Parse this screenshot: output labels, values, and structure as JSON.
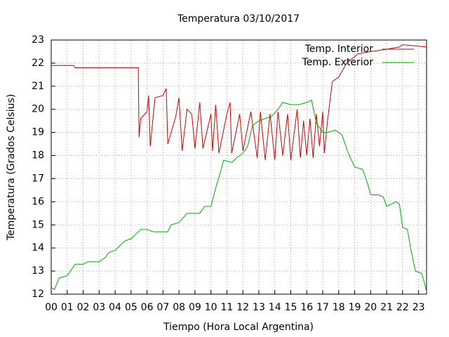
{
  "chart_data": {
    "type": "line",
    "title": "Temperatura 03/10/2017",
    "x_label": "Tiempo (Hora Local Argentina)",
    "y_label": "Temperatura (Grados Celsius)",
    "xlim": [
      0,
      23.5
    ],
    "ylim": [
      12,
      23
    ],
    "xticks": [
      {
        "value": 0,
        "label": "00"
      },
      {
        "value": 1,
        "label": "01"
      },
      {
        "value": 2,
        "label": "02"
      },
      {
        "value": 3,
        "label": "03"
      },
      {
        "value": 4,
        "label": "04"
      },
      {
        "value": 5,
        "label": "05"
      },
      {
        "value": 6,
        "label": "06"
      },
      {
        "value": 7,
        "label": "07"
      },
      {
        "value": 8,
        "label": "08"
      },
      {
        "value": 9,
        "label": "09"
      },
      10,
      11,
      12,
      13,
      14,
      15,
      16,
      17,
      18,
      19,
      20,
      21,
      22,
      23
    ],
    "yticks": [
      12,
      13,
      14,
      15,
      16,
      17,
      18,
      19,
      20,
      21,
      22,
      23
    ],
    "grid": true,
    "legend": "top-right",
    "series": [
      {
        "name": "Temp. Interior",
        "color": "#cc0000",
        "x": [
          0,
          1.4,
          1.5,
          5.45,
          5.5,
          5.6,
          6.0,
          6.1,
          6.2,
          6.5,
          7.0,
          7.2,
          7.3,
          7.8,
          8.0,
          8.2,
          8.5,
          8.8,
          9.0,
          9.3,
          9.5,
          10.0,
          10.1,
          10.3,
          10.5,
          11.0,
          11.2,
          11.3,
          11.8,
          12.0,
          12.5,
          12.9,
          13.1,
          13.4,
          13.7,
          14.0,
          14.2,
          14.5,
          14.8,
          15.0,
          15.4,
          15.6,
          15.8,
          16.0,
          16.2,
          16.4,
          16.6,
          16.8,
          17.0,
          17.1,
          17.3,
          17.6,
          18.0,
          18.5,
          19.2,
          20.0,
          21.0,
          21.8,
          22.0,
          23.5
        ],
        "values": [
          21.9,
          21.9,
          21.8,
          21.8,
          18.8,
          19.6,
          19.9,
          20.6,
          18.4,
          20.5,
          20.6,
          20.9,
          18.5,
          19.7,
          20.5,
          18.2,
          20.0,
          19.8,
          18.3,
          20.3,
          18.3,
          19.8,
          18.2,
          20.2,
          18.1,
          19.8,
          20.3,
          18.1,
          19.8,
          18.2,
          19.9,
          17.9,
          19.9,
          17.8,
          19.8,
          17.8,
          19.9,
          18.0,
          19.8,
          17.8,
          20.0,
          17.9,
          19.5,
          18.0,
          19.6,
          17.9,
          19.8,
          18.4,
          19.9,
          18.1,
          19.5,
          21.2,
          21.4,
          22.0,
          22.4,
          22.5,
          22.6,
          22.7,
          22.8,
          22.7
        ]
      },
      {
        "name": "Temp. Exterior",
        "color": "#00aa00",
        "x": [
          0,
          0.2,
          0.5,
          1.0,
          1.2,
          1.5,
          2.0,
          2.3,
          3.0,
          3.4,
          3.6,
          4.0,
          4.3,
          4.6,
          5.0,
          5.3,
          5.6,
          6.0,
          6.4,
          7.0,
          7.3,
          7.5,
          8.0,
          8.5,
          9.0,
          9.3,
          9.6,
          10.0,
          10.3,
          10.6,
          10.8,
          11.3,
          11.6,
          12.0,
          12.3,
          12.6,
          13.0,
          13.4,
          13.8,
          14.2,
          14.5,
          15.0,
          15.5,
          16.0,
          16.3,
          16.6,
          17.0,
          17.3,
          17.8,
          18.2,
          18.6,
          19.0,
          19.5,
          19.8,
          20.0,
          20.5,
          20.8,
          21.0,
          21.3,
          21.6,
          21.8,
          22.0,
          22.3,
          22.5,
          22.8,
          23.2,
          23.4,
          23.5
        ],
        "values": [
          12.3,
          12.2,
          12.7,
          12.8,
          13.0,
          13.3,
          13.3,
          13.4,
          13.4,
          13.6,
          13.8,
          13.9,
          14.1,
          14.3,
          14.4,
          14.6,
          14.8,
          14.8,
          14.7,
          14.7,
          14.7,
          15.0,
          15.1,
          15.5,
          15.5,
          15.5,
          15.8,
          15.8,
          16.6,
          17.3,
          17.8,
          17.7,
          17.9,
          18.1,
          18.4,
          19.3,
          19.5,
          19.6,
          19.7,
          20.0,
          20.3,
          20.2,
          20.2,
          20.3,
          20.4,
          19.4,
          19.0,
          19.0,
          19.1,
          18.9,
          18.1,
          17.5,
          17.4,
          16.8,
          16.3,
          16.3,
          16.2,
          15.8,
          15.9,
          16.0,
          15.9,
          14.9,
          14.8,
          14.0,
          13.0,
          12.9,
          12.4,
          12.1
        ]
      }
    ]
  }
}
